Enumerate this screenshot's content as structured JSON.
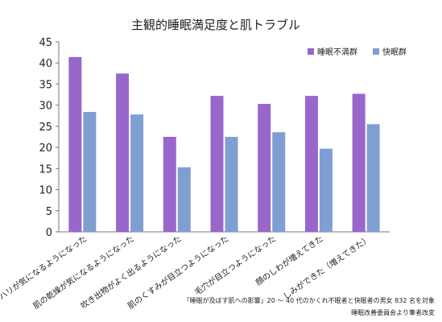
{
  "colors": {
    "series0": "#9966cc",
    "series1": "#7f9fd3",
    "axis": "#777777"
  },
  "chart_data": {
    "type": "bar",
    "title": "主観的睡眠満足度と肌トラブル",
    "xlabel": "",
    "ylabel": "",
    "ylim": [
      0,
      45
    ],
    "yticks": [
      "0",
      "5",
      "10",
      "15",
      "20",
      "25",
      "30",
      "35",
      "40",
      "45"
    ],
    "grid": false,
    "legend_position": "top-right",
    "categories": [
      "肌のハリが気になるようになった",
      "肌の乾燥が気になるようになった",
      "吹き出物がよく出るようになった",
      "肌のくすみが目立つようになった",
      "毛穴が目立つようになった",
      "顔のしわが増えてきた",
      "しみができた（増えてきた）"
    ],
    "series": [
      {
        "name": "睡眠不満群",
        "values": [
          41.4,
          37.5,
          22.5,
          32.2,
          30.3,
          32.2,
          32.7
        ]
      },
      {
        "name": "快眠群",
        "values": [
          28.4,
          27.8,
          15.3,
          22.5,
          23.6,
          19.7,
          25.5
        ]
      }
    ]
  },
  "source": {
    "line1": "「睡眠が及ぼす肌への影響」20 ～ 40 代のかくれ不眠者と快眠者の男女 832 名を対象",
    "line2": "睡眠改善委員会より筆者改変"
  }
}
